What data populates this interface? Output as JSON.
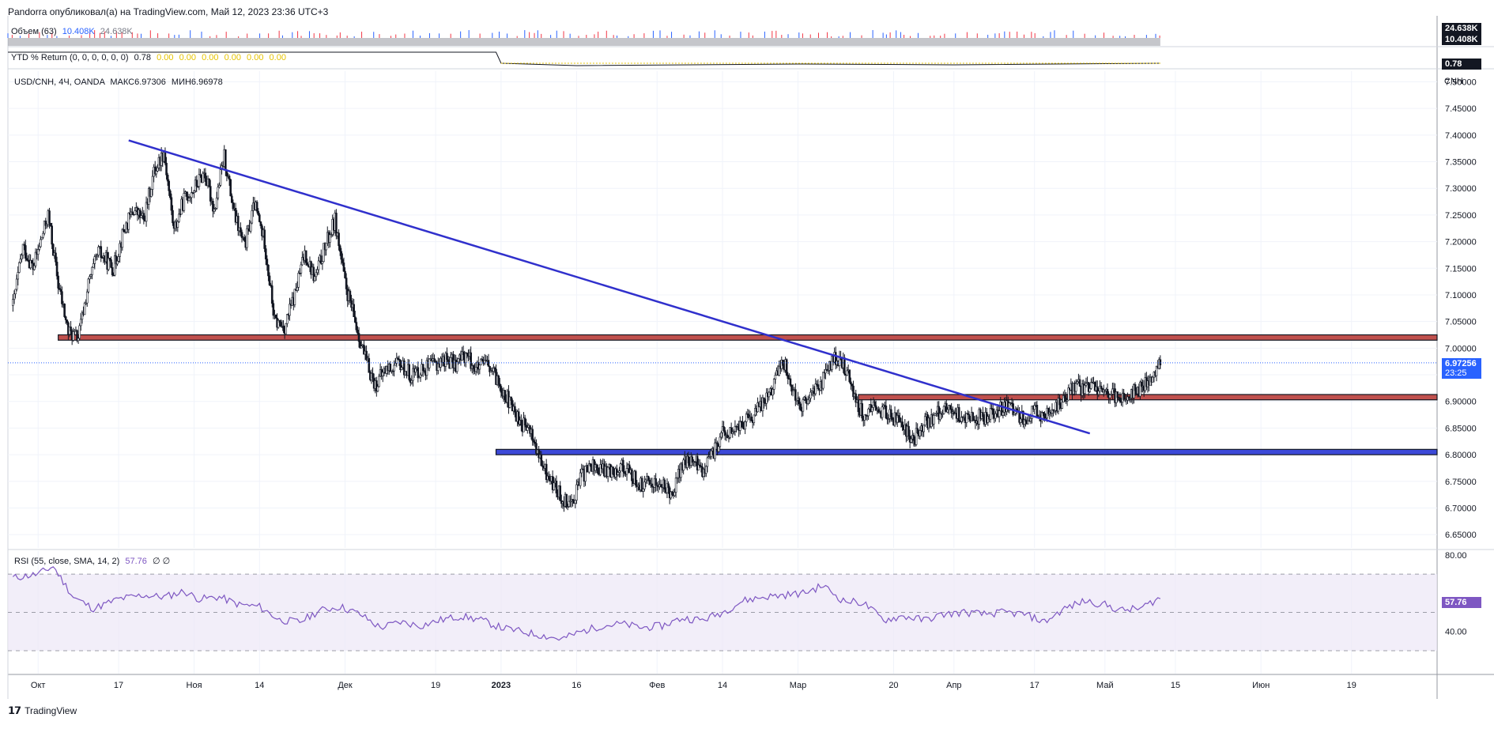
{
  "header": {
    "published_by": "Pandorra опубликовал(а) на TradingView.com, Май 12, 2023 23:36 UTC+3"
  },
  "volume_pane": {
    "legend_label": "Объем (63)",
    "legend_value_1": "10.408K",
    "legend_value_2": "24.638K",
    "badge_top": "24.638K",
    "badge_bottom": "10.408K",
    "badge_color": "#131722"
  },
  "ytd_pane": {
    "legend_label": "YTD % Return (0, 0, 0, 0, 0, 0)",
    "legend_value": "0.78",
    "zero_values": [
      "0.00",
      "0.00",
      "0.00",
      "0.00",
      "0.00",
      "0.00"
    ],
    "badge": "0.78",
    "badge_color": "#131722",
    "zero_color": "#e6c300"
  },
  "main_pane": {
    "legend_symbol": "USD/CNH, 4Ч, OANDA",
    "legend_max": "МАКС6.97306",
    "legend_min": "МИН6.96978",
    "currency": "CNH",
    "price_badge": "6.97256",
    "price_badge_time": "23:25",
    "price_badge_color": "#2962ff"
  },
  "rsi_pane": {
    "legend": "RSI (55, close, SMA, 14, 2)",
    "legend_value": "57.76",
    "legend_extra": "∅ ∅",
    "badge": "57.76",
    "badge_color": "#7e57c2",
    "line_color": "#7e57c2",
    "band_color": "#ede7f6",
    "y_ticks": [
      "80.00",
      "40.00"
    ],
    "upper_band": 70,
    "lower_band": 30,
    "mid_band": 50
  },
  "footer": {
    "brand": "TradingView"
  },
  "chart_data": {
    "type": "candlestick",
    "symbol": "USD/CNH",
    "interval": "4Ч",
    "y_ticks": [
      "7.50000",
      "7.45000",
      "7.40000",
      "7.35000",
      "7.30000",
      "7.25000",
      "7.20000",
      "7.15000",
      "7.10000",
      "7.05000",
      "7.00000",
      "6.95000",
      "6.90000",
      "6.85000",
      "6.80000",
      "6.75000",
      "6.70000",
      "6.65000"
    ],
    "ylim": [
      6.625,
      7.52
    ],
    "x_ticks": [
      "Окт",
      "17",
      "Ноя",
      "14",
      "Дек",
      "19",
      "2023",
      "16",
      "Фев",
      "14",
      "Мар",
      "20",
      "Апр",
      "17",
      "Май",
      "15",
      "Июн",
      "19"
    ],
    "x_tick_dates": [
      "2022-10-01",
      "2022-10-17",
      "2022-11-01",
      "2022-11-14",
      "2022-12-01",
      "2022-12-19",
      "2023-01-01",
      "2023-01-16",
      "2023-02-01",
      "2023-02-14",
      "2023-03-01",
      "2023-03-20",
      "2023-04-01",
      "2023-04-17",
      "2023-05-01",
      "2023-05-15",
      "2023-06-01",
      "2023-06-19"
    ],
    "price_path": [
      [
        "2022-09-26",
        7.08
      ],
      [
        "2022-09-28",
        7.19
      ],
      [
        "2022-09-30",
        7.15
      ],
      [
        "2022-10-03",
        7.25
      ],
      [
        "2022-10-05",
        7.12
      ],
      [
        "2022-10-07",
        7.03
      ],
      [
        "2022-10-09",
        7.02
      ],
      [
        "2022-10-11",
        7.12
      ],
      [
        "2022-10-13",
        7.18
      ],
      [
        "2022-10-16",
        7.15
      ],
      [
        "2022-10-18",
        7.22
      ],
      [
        "2022-10-20",
        7.26
      ],
      [
        "2022-10-22",
        7.24
      ],
      [
        "2022-10-24",
        7.33
      ],
      [
        "2022-10-26",
        7.37
      ],
      [
        "2022-10-28",
        7.22
      ],
      [
        "2022-10-30",
        7.28
      ],
      [
        "2022-11-01",
        7.3
      ],
      [
        "2022-11-03",
        7.33
      ],
      [
        "2022-11-05",
        7.26
      ],
      [
        "2022-11-07",
        7.36
      ],
      [
        "2022-11-09",
        7.25
      ],
      [
        "2022-11-11",
        7.19
      ],
      [
        "2022-11-13",
        7.27
      ],
      [
        "2022-11-15",
        7.2
      ],
      [
        "2022-11-17",
        7.05
      ],
      [
        "2022-11-19",
        7.04
      ],
      [
        "2022-11-21",
        7.1
      ],
      [
        "2022-11-23",
        7.18
      ],
      [
        "2022-11-25",
        7.13
      ],
      [
        "2022-11-27",
        7.19
      ],
      [
        "2022-11-29",
        7.24
      ],
      [
        "2022-12-01",
        7.12
      ],
      [
        "2022-12-03",
        7.05
      ],
      [
        "2022-12-05",
        6.98
      ],
      [
        "2022-12-07",
        6.93
      ],
      [
        "2022-12-09",
        6.96
      ],
      [
        "2022-12-12",
        6.97
      ],
      [
        "2022-12-14",
        6.95
      ],
      [
        "2022-12-16",
        6.96
      ],
      [
        "2022-12-19",
        6.97
      ],
      [
        "2022-12-21",
        6.98
      ],
      [
        "2022-12-23",
        6.97
      ],
      [
        "2022-12-25",
        6.99
      ],
      [
        "2022-12-27",
        6.96
      ],
      [
        "2022-12-29",
        6.97
      ],
      [
        "2023-01-01",
        6.93
      ],
      [
        "2023-01-03",
        6.89
      ],
      [
        "2023-01-05",
        6.86
      ],
      [
        "2023-01-07",
        6.84
      ],
      [
        "2023-01-09",
        6.78
      ],
      [
        "2023-01-11",
        6.75
      ],
      [
        "2023-01-13",
        6.72
      ],
      [
        "2023-01-15",
        6.71
      ],
      [
        "2023-01-17",
        6.76
      ],
      [
        "2023-01-19",
        6.78
      ],
      [
        "2023-01-21",
        6.77
      ],
      [
        "2023-01-23",
        6.77
      ],
      [
        "2023-01-25",
        6.78
      ],
      [
        "2023-01-27",
        6.76
      ],
      [
        "2023-01-29",
        6.74
      ],
      [
        "2023-01-31",
        6.75
      ],
      [
        "2023-02-02",
        6.74
      ],
      [
        "2023-02-04",
        6.73
      ],
      [
        "2023-02-06",
        6.78
      ],
      [
        "2023-02-08",
        6.79
      ],
      [
        "2023-02-10",
        6.77
      ],
      [
        "2023-02-12",
        6.8
      ],
      [
        "2023-02-14",
        6.84
      ],
      [
        "2023-02-16",
        6.84
      ],
      [
        "2023-02-18",
        6.86
      ],
      [
        "2023-02-20",
        6.87
      ],
      [
        "2023-02-22",
        6.9
      ],
      [
        "2023-02-24",
        6.93
      ],
      [
        "2023-02-26",
        6.98
      ],
      [
        "2023-02-28",
        6.92
      ],
      [
        "2023-03-02",
        6.89
      ],
      [
        "2023-03-04",
        6.92
      ],
      [
        "2023-03-06",
        6.94
      ],
      [
        "2023-03-08",
        6.98
      ],
      [
        "2023-03-10",
        6.97
      ],
      [
        "2023-03-12",
        6.92
      ],
      [
        "2023-03-14",
        6.87
      ],
      [
        "2023-03-16",
        6.89
      ],
      [
        "2023-03-18",
        6.88
      ],
      [
        "2023-03-20",
        6.87
      ],
      [
        "2023-03-22",
        6.85
      ],
      [
        "2023-03-24",
        6.83
      ],
      [
        "2023-03-26",
        6.86
      ],
      [
        "2023-03-28",
        6.87
      ],
      [
        "2023-03-30",
        6.89
      ],
      [
        "2023-04-01",
        6.88
      ],
      [
        "2023-04-03",
        6.87
      ],
      [
        "2023-04-05",
        6.87
      ],
      [
        "2023-04-07",
        6.87
      ],
      [
        "2023-04-09",
        6.88
      ],
      [
        "2023-04-11",
        6.89
      ],
      [
        "2023-04-13",
        6.88
      ],
      [
        "2023-04-15",
        6.87
      ],
      [
        "2023-04-17",
        6.88
      ],
      [
        "2023-04-19",
        6.87
      ],
      [
        "2023-04-21",
        6.89
      ],
      [
        "2023-04-23",
        6.9
      ],
      [
        "2023-04-25",
        6.93
      ],
      [
        "2023-04-27",
        6.92
      ],
      [
        "2023-04-29",
        6.93
      ],
      [
        "2023-05-01",
        6.92
      ],
      [
        "2023-05-03",
        6.91
      ],
      [
        "2023-05-05",
        6.91
      ],
      [
        "2023-05-07",
        6.92
      ],
      [
        "2023-05-09",
        6.93
      ],
      [
        "2023-05-11",
        6.96
      ],
      [
        "2023-05-12",
        6.97
      ]
    ],
    "last_price": 6.97256,
    "horizontal_zones": [
      {
        "type": "resistance",
        "color": "#c0504d",
        "price_top": 7.025,
        "price_bottom": 7.015,
        "start": "2022-10-05",
        "end": "2023-07-03"
      },
      {
        "type": "resistance",
        "color": "#c0504d",
        "price_top": 6.913,
        "price_bottom": 6.903,
        "start": "2023-03-13",
        "end": "2023-07-03"
      },
      {
        "type": "support",
        "color": "#3c49d8",
        "price_top": 6.81,
        "price_bottom": 6.8,
        "start": "2022-12-31",
        "end": "2023-07-03"
      }
    ],
    "trendline": {
      "color": "#3030cc",
      "start": [
        "2022-10-19",
        7.39
      ],
      "end": [
        "2023-04-28",
        6.84
      ]
    },
    "rsi_path": [
      [
        "2022-09-26",
        68
      ],
      [
        "2022-10-01",
        70
      ],
      [
        "2022-10-04",
        74
      ],
      [
        "2022-10-08",
        58
      ],
      [
        "2022-10-12",
        52
      ],
      [
        "2022-10-17",
        57
      ],
      [
        "2022-10-22",
        59
      ],
      [
        "2022-10-26",
        58
      ],
      [
        "2022-10-30",
        61
      ],
      [
        "2022-11-02",
        57
      ],
      [
        "2022-11-06",
        58
      ],
      [
        "2022-11-10",
        54
      ],
      [
        "2022-11-14",
        53
      ],
      [
        "2022-11-18",
        46
      ],
      [
        "2022-11-22",
        45
      ],
      [
        "2022-11-26",
        51
      ],
      [
        "2022-11-30",
        53
      ],
      [
        "2022-12-04",
        49
      ],
      [
        "2022-12-08",
        42
      ],
      [
        "2022-12-12",
        45
      ],
      [
        "2022-12-16",
        43
      ],
      [
        "2022-12-20",
        46
      ],
      [
        "2022-12-24",
        48
      ],
      [
        "2022-12-28",
        46
      ],
      [
        "2023-01-01",
        42
      ],
      [
        "2023-01-05",
        40
      ],
      [
        "2023-01-09",
        38
      ],
      [
        "2023-01-13",
        36
      ],
      [
        "2023-01-17",
        40
      ],
      [
        "2023-01-21",
        43
      ],
      [
        "2023-01-25",
        44
      ],
      [
        "2023-01-29",
        42
      ],
      [
        "2023-02-02",
        43
      ],
      [
        "2023-02-06",
        47
      ],
      [
        "2023-02-10",
        46
      ],
      [
        "2023-02-14",
        50
      ],
      [
        "2023-02-18",
        56
      ],
      [
        "2023-02-22",
        58
      ],
      [
        "2023-02-26",
        59
      ],
      [
        "2023-03-02",
        60
      ],
      [
        "2023-03-06",
        64
      ],
      [
        "2023-03-10",
        56
      ],
      [
        "2023-03-14",
        55
      ],
      [
        "2023-03-18",
        46
      ],
      [
        "2023-03-22",
        48
      ],
      [
        "2023-03-26",
        46
      ],
      [
        "2023-03-30",
        49
      ],
      [
        "2023-04-03",
        50
      ],
      [
        "2023-04-07",
        49
      ],
      [
        "2023-04-11",
        50
      ],
      [
        "2023-04-15",
        49
      ],
      [
        "2023-04-19",
        45
      ],
      [
        "2023-04-23",
        52
      ],
      [
        "2023-04-27",
        56
      ],
      [
        "2023-05-01",
        54
      ],
      [
        "2023-05-04",
        51
      ],
      [
        "2023-05-08",
        52
      ],
      [
        "2023-05-12",
        57.76
      ]
    ]
  }
}
